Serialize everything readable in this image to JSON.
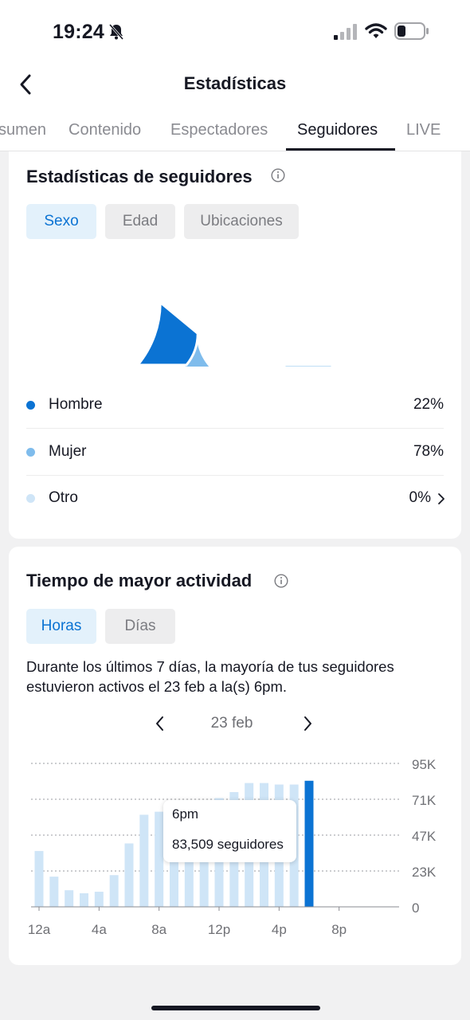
{
  "status_bar": {
    "time": "19:24"
  },
  "header": {
    "title": "Estadísticas"
  },
  "tabs": [
    {
      "label": "sumen"
    },
    {
      "label": "Contenido"
    },
    {
      "label": "Espectadores"
    },
    {
      "label": "Seguidores",
      "active": true
    },
    {
      "label": "LIVE"
    }
  ],
  "follower_stats": {
    "title": "Estadísticas de seguidores",
    "chips": [
      {
        "label": "Sexo",
        "active": true
      },
      {
        "label": "Edad"
      },
      {
        "label": "Ubicaciones"
      }
    ],
    "legend": [
      {
        "label": "Hombre",
        "value": "22%",
        "color": "#0b73d3"
      },
      {
        "label": "Mujer",
        "value": "78%",
        "color": "#7fbcec"
      },
      {
        "label": "Otro",
        "value": "0%",
        "color": "#cfe5f7"
      }
    ]
  },
  "activity": {
    "title": "Tiempo de mayor actividad",
    "chips": [
      {
        "label": "Horas",
        "active": true
      },
      {
        "label": "Días"
      }
    ],
    "summary": "Durante los últimos 7 días, la mayoría de tus seguidores estuvieron activos el 23 feb a la(s) 6pm.",
    "date_label": "23 feb",
    "tooltip": {
      "hour": "6pm",
      "value": "83,509 seguidores"
    }
  },
  "chart_data": {
    "type": "bar",
    "categories": [
      "12a",
      "1a",
      "2a",
      "3a",
      "4a",
      "5a",
      "6a",
      "7a",
      "8a",
      "9a",
      "10a",
      "11a",
      "12p",
      "1p",
      "2p",
      "3p",
      "4p",
      "5p",
      "6p",
      "7p",
      "8p",
      "9p",
      "10p",
      "11p"
    ],
    "values": [
      37000,
      20000,
      11000,
      9000,
      10000,
      21000,
      42000,
      61000,
      63000,
      63000,
      66000,
      68000,
      72000,
      76000,
      82000,
      82000,
      81000,
      81000,
      83509,
      null,
      null,
      null,
      null,
      null
    ],
    "highlight_index": 18,
    "xtick_labels": [
      "12a",
      "4a",
      "8a",
      "12p",
      "4p",
      "8p"
    ],
    "ytick_labels": [
      "95K",
      "71K",
      "47K",
      "23K",
      "0"
    ],
    "ylim": [
      0,
      95000
    ],
    "bar_color": "#cfe5f7",
    "highlight_color": "#0b73d3",
    "grid": true
  }
}
